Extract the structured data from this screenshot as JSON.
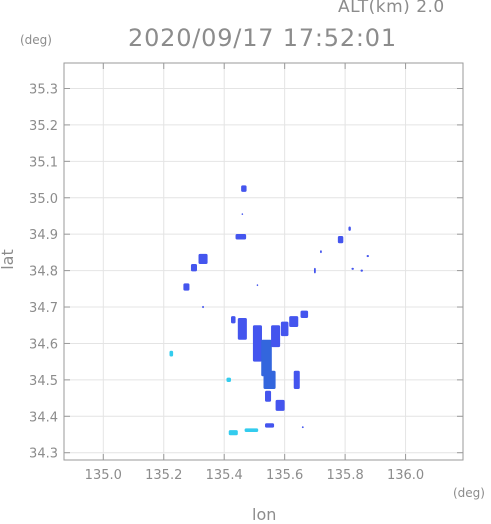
{
  "chart_data": {
    "type": "heatmap",
    "title": "2020/09/17 17:52:01",
    "subtitle": "ALT(km) 2.0",
    "xlabel": "lon",
    "ylabel": "lat",
    "x_unit": "(deg)",
    "y_unit": "(deg)",
    "xlim": [
      134.87,
      136.19
    ],
    "ylim": [
      34.28,
      35.37
    ],
    "xticks": [
      "135.0",
      "135.2",
      "135.4",
      "135.6",
      "135.8",
      "136.0"
    ],
    "yticks": [
      "34.3",
      "34.4",
      "34.5",
      "34.6",
      "34.7",
      "34.8",
      "34.9",
      "35.0",
      "35.1",
      "35.2",
      "35.3"
    ],
    "grid": true,
    "colors": {
      "low": "#33ccee",
      "mid": "#4455ee",
      "high": "#3366dd",
      "axis": "#9a9a9a",
      "grid": "#e4e4e4"
    },
    "echoes": [
      {
        "lon": 135.465,
        "lat": 35.025,
        "w": 0.018,
        "h": 0.018,
        "c": "mid"
      },
      {
        "lon": 135.455,
        "lat": 34.893,
        "w": 0.035,
        "h": 0.015,
        "c": "mid"
      },
      {
        "lon": 135.33,
        "lat": 34.832,
        "w": 0.03,
        "h": 0.028,
        "c": "mid"
      },
      {
        "lon": 135.3,
        "lat": 34.808,
        "w": 0.02,
        "h": 0.02,
        "c": "mid"
      },
      {
        "lon": 135.275,
        "lat": 34.755,
        "w": 0.02,
        "h": 0.02,
        "c": "mid"
      },
      {
        "lon": 135.225,
        "lat": 34.572,
        "w": 0.012,
        "h": 0.016,
        "c": "low"
      },
      {
        "lon": 135.415,
        "lat": 34.5,
        "w": 0.015,
        "h": 0.012,
        "c": "low"
      },
      {
        "lon": 135.43,
        "lat": 34.665,
        "w": 0.015,
        "h": 0.02,
        "c": "mid"
      },
      {
        "lon": 135.46,
        "lat": 34.64,
        "w": 0.03,
        "h": 0.06,
        "c": "mid"
      },
      {
        "lon": 135.51,
        "lat": 34.6,
        "w": 0.03,
        "h": 0.1,
        "c": "mid"
      },
      {
        "lon": 135.54,
        "lat": 34.56,
        "w": 0.035,
        "h": 0.1,
        "c": "high"
      },
      {
        "lon": 135.55,
        "lat": 34.5,
        "w": 0.04,
        "h": 0.05,
        "c": "high"
      },
      {
        "lon": 135.57,
        "lat": 34.62,
        "w": 0.03,
        "h": 0.06,
        "c": "mid"
      },
      {
        "lon": 135.6,
        "lat": 34.64,
        "w": 0.025,
        "h": 0.04,
        "c": "mid"
      },
      {
        "lon": 135.63,
        "lat": 34.66,
        "w": 0.03,
        "h": 0.03,
        "c": "mid"
      },
      {
        "lon": 135.665,
        "lat": 34.68,
        "w": 0.025,
        "h": 0.02,
        "c": "mid"
      },
      {
        "lon": 135.64,
        "lat": 34.5,
        "w": 0.02,
        "h": 0.05,
        "c": "mid"
      },
      {
        "lon": 135.585,
        "lat": 34.43,
        "w": 0.03,
        "h": 0.03,
        "c": "mid"
      },
      {
        "lon": 135.545,
        "lat": 34.455,
        "w": 0.02,
        "h": 0.03,
        "c": "mid"
      },
      {
        "lon": 135.55,
        "lat": 34.375,
        "w": 0.03,
        "h": 0.012,
        "c": "mid"
      },
      {
        "lon": 135.43,
        "lat": 34.355,
        "w": 0.03,
        "h": 0.014,
        "c": "low"
      },
      {
        "lon": 135.49,
        "lat": 34.362,
        "w": 0.045,
        "h": 0.01,
        "c": "low"
      },
      {
        "lon": 135.72,
        "lat": 34.852,
        "w": 0.006,
        "h": 0.008,
        "c": "mid"
      },
      {
        "lon": 135.7,
        "lat": 34.8,
        "w": 0.006,
        "h": 0.015,
        "c": "mid"
      },
      {
        "lon": 135.785,
        "lat": 34.885,
        "w": 0.018,
        "h": 0.02,
        "c": "mid"
      },
      {
        "lon": 135.815,
        "lat": 34.915,
        "w": 0.008,
        "h": 0.012,
        "c": "mid"
      },
      {
        "lon": 135.825,
        "lat": 34.805,
        "w": 0.008,
        "h": 0.006,
        "c": "mid"
      },
      {
        "lon": 135.875,
        "lat": 34.84,
        "w": 0.008,
        "h": 0.006,
        "c": "mid"
      },
      {
        "lon": 135.855,
        "lat": 34.8,
        "w": 0.008,
        "h": 0.006,
        "c": "mid"
      },
      {
        "lon": 135.33,
        "lat": 34.7,
        "w": 0.006,
        "h": 0.006,
        "c": "mid"
      },
      {
        "lon": 135.51,
        "lat": 34.76,
        "w": 0.005,
        "h": 0.005,
        "c": "mid"
      },
      {
        "lon": 135.46,
        "lat": 34.955,
        "w": 0.005,
        "h": 0.005,
        "c": "mid"
      },
      {
        "lon": 135.66,
        "lat": 34.37,
        "w": 0.006,
        "h": 0.005,
        "c": "mid"
      }
    ]
  }
}
